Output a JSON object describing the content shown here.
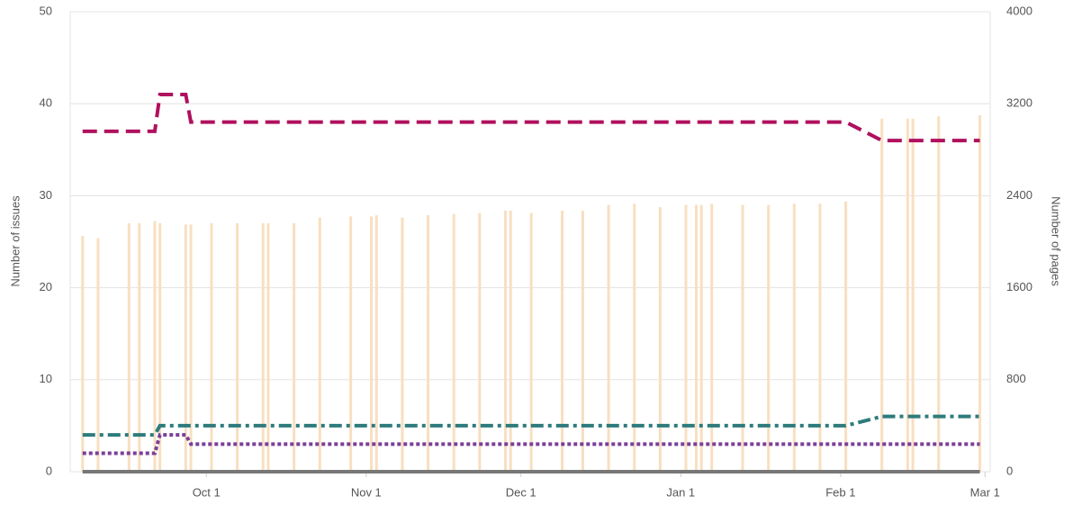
{
  "chart_data": {
    "type": "line",
    "x": [
      -24,
      -21,
      -15,
      -13,
      -10,
      -9,
      -4,
      -3,
      1,
      6,
      11,
      12,
      17,
      22,
      28,
      32,
      33,
      38,
      43,
      48,
      53,
      58,
      59,
      63,
      69,
      73,
      78,
      83,
      88,
      93,
      95,
      96,
      98,
      104,
      109,
      114,
      119,
      124,
      131,
      136,
      137,
      142,
      150
    ],
    "xlim": [
      -26.4,
      152
    ],
    "xticks": [
      {
        "value": 0,
        "label": "Oct 1"
      },
      {
        "value": 31,
        "label": "Nov 1"
      },
      {
        "value": 61,
        "label": "Dec 1"
      },
      {
        "value": 92,
        "label": "Jan 1"
      },
      {
        "value": 123,
        "label": "Feb 1"
      },
      {
        "value": 151,
        "label": "Mar 1"
      }
    ],
    "ylim": [
      0,
      50
    ],
    "yticks": [
      0,
      10,
      20,
      30,
      40,
      50
    ],
    "y2lim": [
      0,
      4000
    ],
    "y2ticks": [
      0,
      800,
      1600,
      2400,
      3200,
      4000
    ],
    "ylabel": "Number of issues",
    "y2label": "Number of pages",
    "grid": true,
    "series": [
      {
        "type": "bar",
        "axis": "y2",
        "color": "#f8dfc1",
        "values": [
          2050,
          2030,
          2160,
          2160,
          2180,
          2160,
          2150,
          2150,
          2160,
          2160,
          2160,
          2160,
          2160,
          2210,
          2220,
          2220,
          2230,
          2210,
          2230,
          2240,
          2250,
          2270,
          2270,
          2250,
          2270,
          2270,
          2320,
          2330,
          2300,
          2320,
          2320,
          2320,
          2330,
          2320,
          2320,
          2330,
          2330,
          2350,
          3070,
          3070,
          3070,
          3090,
          3100
        ]
      },
      {
        "type": "line",
        "dash": "dashed",
        "color": "#b0105e",
        "values": [
          37,
          37,
          37,
          37,
          37,
          41,
          41,
          38,
          38,
          38,
          38,
          38,
          38,
          38,
          38,
          38,
          38,
          38,
          38,
          38,
          38,
          38,
          38,
          38,
          38,
          38,
          38,
          38,
          38,
          38,
          38,
          38,
          38,
          38,
          38,
          38,
          38,
          38,
          36,
          36,
          36,
          36,
          36
        ]
      },
      {
        "type": "line",
        "dash": "dashdot",
        "color": "#2e7b7c",
        "values": [
          4,
          4,
          4,
          4,
          4,
          5,
          5,
          5,
          5,
          5,
          5,
          5,
          5,
          5,
          5,
          5,
          5,
          5,
          5,
          5,
          5,
          5,
          5,
          5,
          5,
          5,
          5,
          5,
          5,
          5,
          5,
          5,
          5,
          5,
          5,
          5,
          5,
          5,
          6,
          6,
          6,
          6,
          6
        ]
      },
      {
        "type": "line",
        "dash": "dotted",
        "color": "#7b3f97",
        "values": [
          2,
          2,
          2,
          2,
          2,
          4,
          4,
          3,
          3,
          3,
          3,
          3,
          3,
          3,
          3,
          3,
          3,
          3,
          3,
          3,
          3,
          3,
          3,
          3,
          3,
          3,
          3,
          3,
          3,
          3,
          3,
          3,
          3,
          3,
          3,
          3,
          3,
          3,
          3,
          3,
          3,
          3,
          3
        ]
      },
      {
        "type": "line",
        "dash": "solid",
        "color": "#777777",
        "values": [
          0,
          0,
          0,
          0,
          0,
          0,
          0,
          0,
          0,
          0,
          0,
          0,
          0,
          0,
          0,
          0,
          0,
          0,
          0,
          0,
          0,
          0,
          0,
          0,
          0,
          0,
          0,
          0,
          0,
          0,
          0,
          0,
          0,
          0,
          0,
          0,
          0,
          0,
          0,
          0,
          0,
          0,
          0
        ]
      }
    ]
  }
}
